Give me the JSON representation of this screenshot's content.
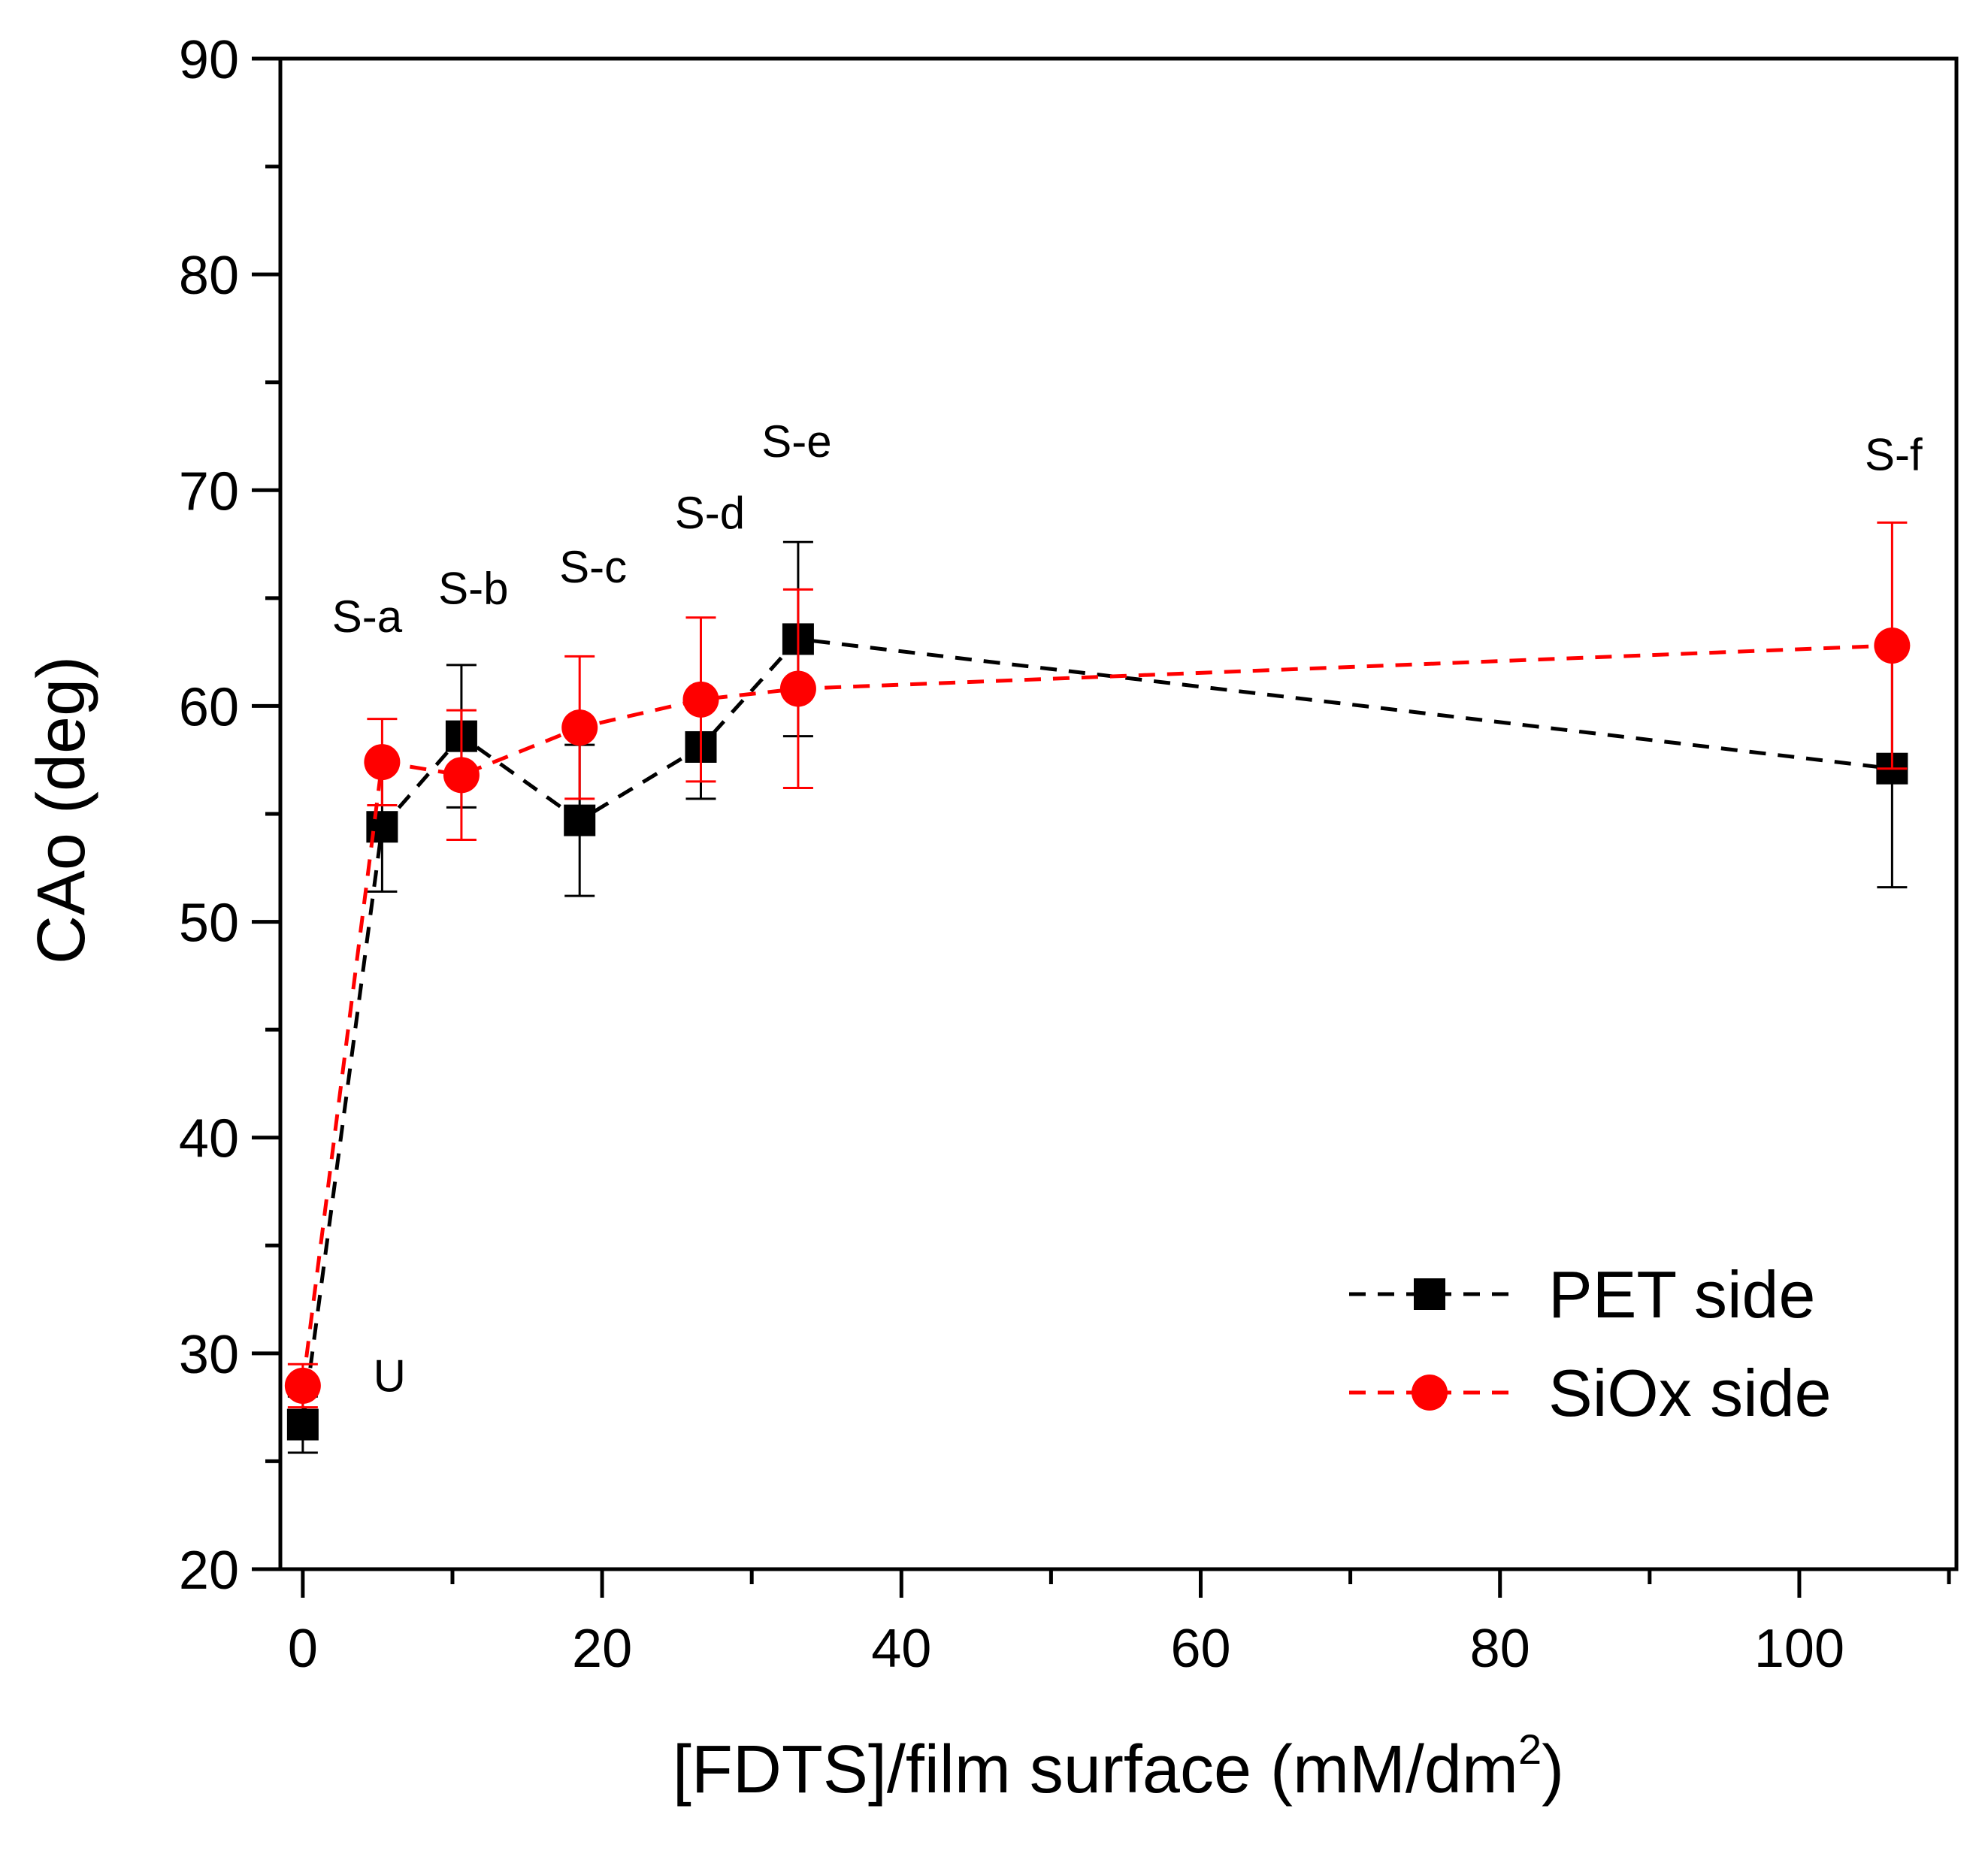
{
  "chart_data": {
    "type": "line",
    "xlabel_main": "[FDTS]/film surface (mM/dm",
    "xlabel_sup": "2",
    "xlabel_close": ")",
    "ylabel": "CAo (deg)",
    "xlim": [
      -1.5,
      110.5
    ],
    "ylim": [
      20,
      90
    ],
    "xticks": [
      0,
      20,
      40,
      60,
      80,
      100
    ],
    "yticks": [
      20,
      30,
      40,
      50,
      60,
      70,
      80,
      90
    ],
    "series": [
      {
        "name": "PET side",
        "color": "#000000",
        "marker": "square",
        "x": [
          0,
          5.3,
          10.6,
          18.5,
          26.6,
          33.1,
          106.2
        ],
        "y": [
          26.7,
          54.4,
          58.6,
          54.7,
          58.1,
          63.1,
          57.1
        ],
        "yerr": [
          1.3,
          3.0,
          3.3,
          3.5,
          2.4,
          4.5,
          5.5
        ]
      },
      {
        "name": "SiOx side",
        "color": "#ff0000",
        "marker": "circle",
        "x": [
          0,
          5.3,
          10.6,
          18.5,
          26.6,
          33.1,
          106.2
        ],
        "y": [
          28.5,
          57.4,
          56.8,
          59.0,
          60.3,
          60.8,
          62.8
        ],
        "yerr": [
          1.0,
          2.0,
          3.0,
          3.3,
          3.8,
          4.6,
          5.7
        ]
      }
    ],
    "sample_labels": [
      {
        "text": "U",
        "x": 5.8,
        "y": 29.0
      },
      {
        "text": "S-a",
        "x": 4.3,
        "y": 64.2
      },
      {
        "text": "S-b",
        "x": 11.4,
        "y": 65.5
      },
      {
        "text": "S-c",
        "x": 19.4,
        "y": 66.5
      },
      {
        "text": "S-d",
        "x": 27.2,
        "y": 69.0
      },
      {
        "text": "S-e",
        "x": 33.0,
        "y": 72.3
      },
      {
        "text": "S-f",
        "x": 106.3,
        "y": 71.7
      }
    ],
    "legend_position": "bottom-right"
  }
}
